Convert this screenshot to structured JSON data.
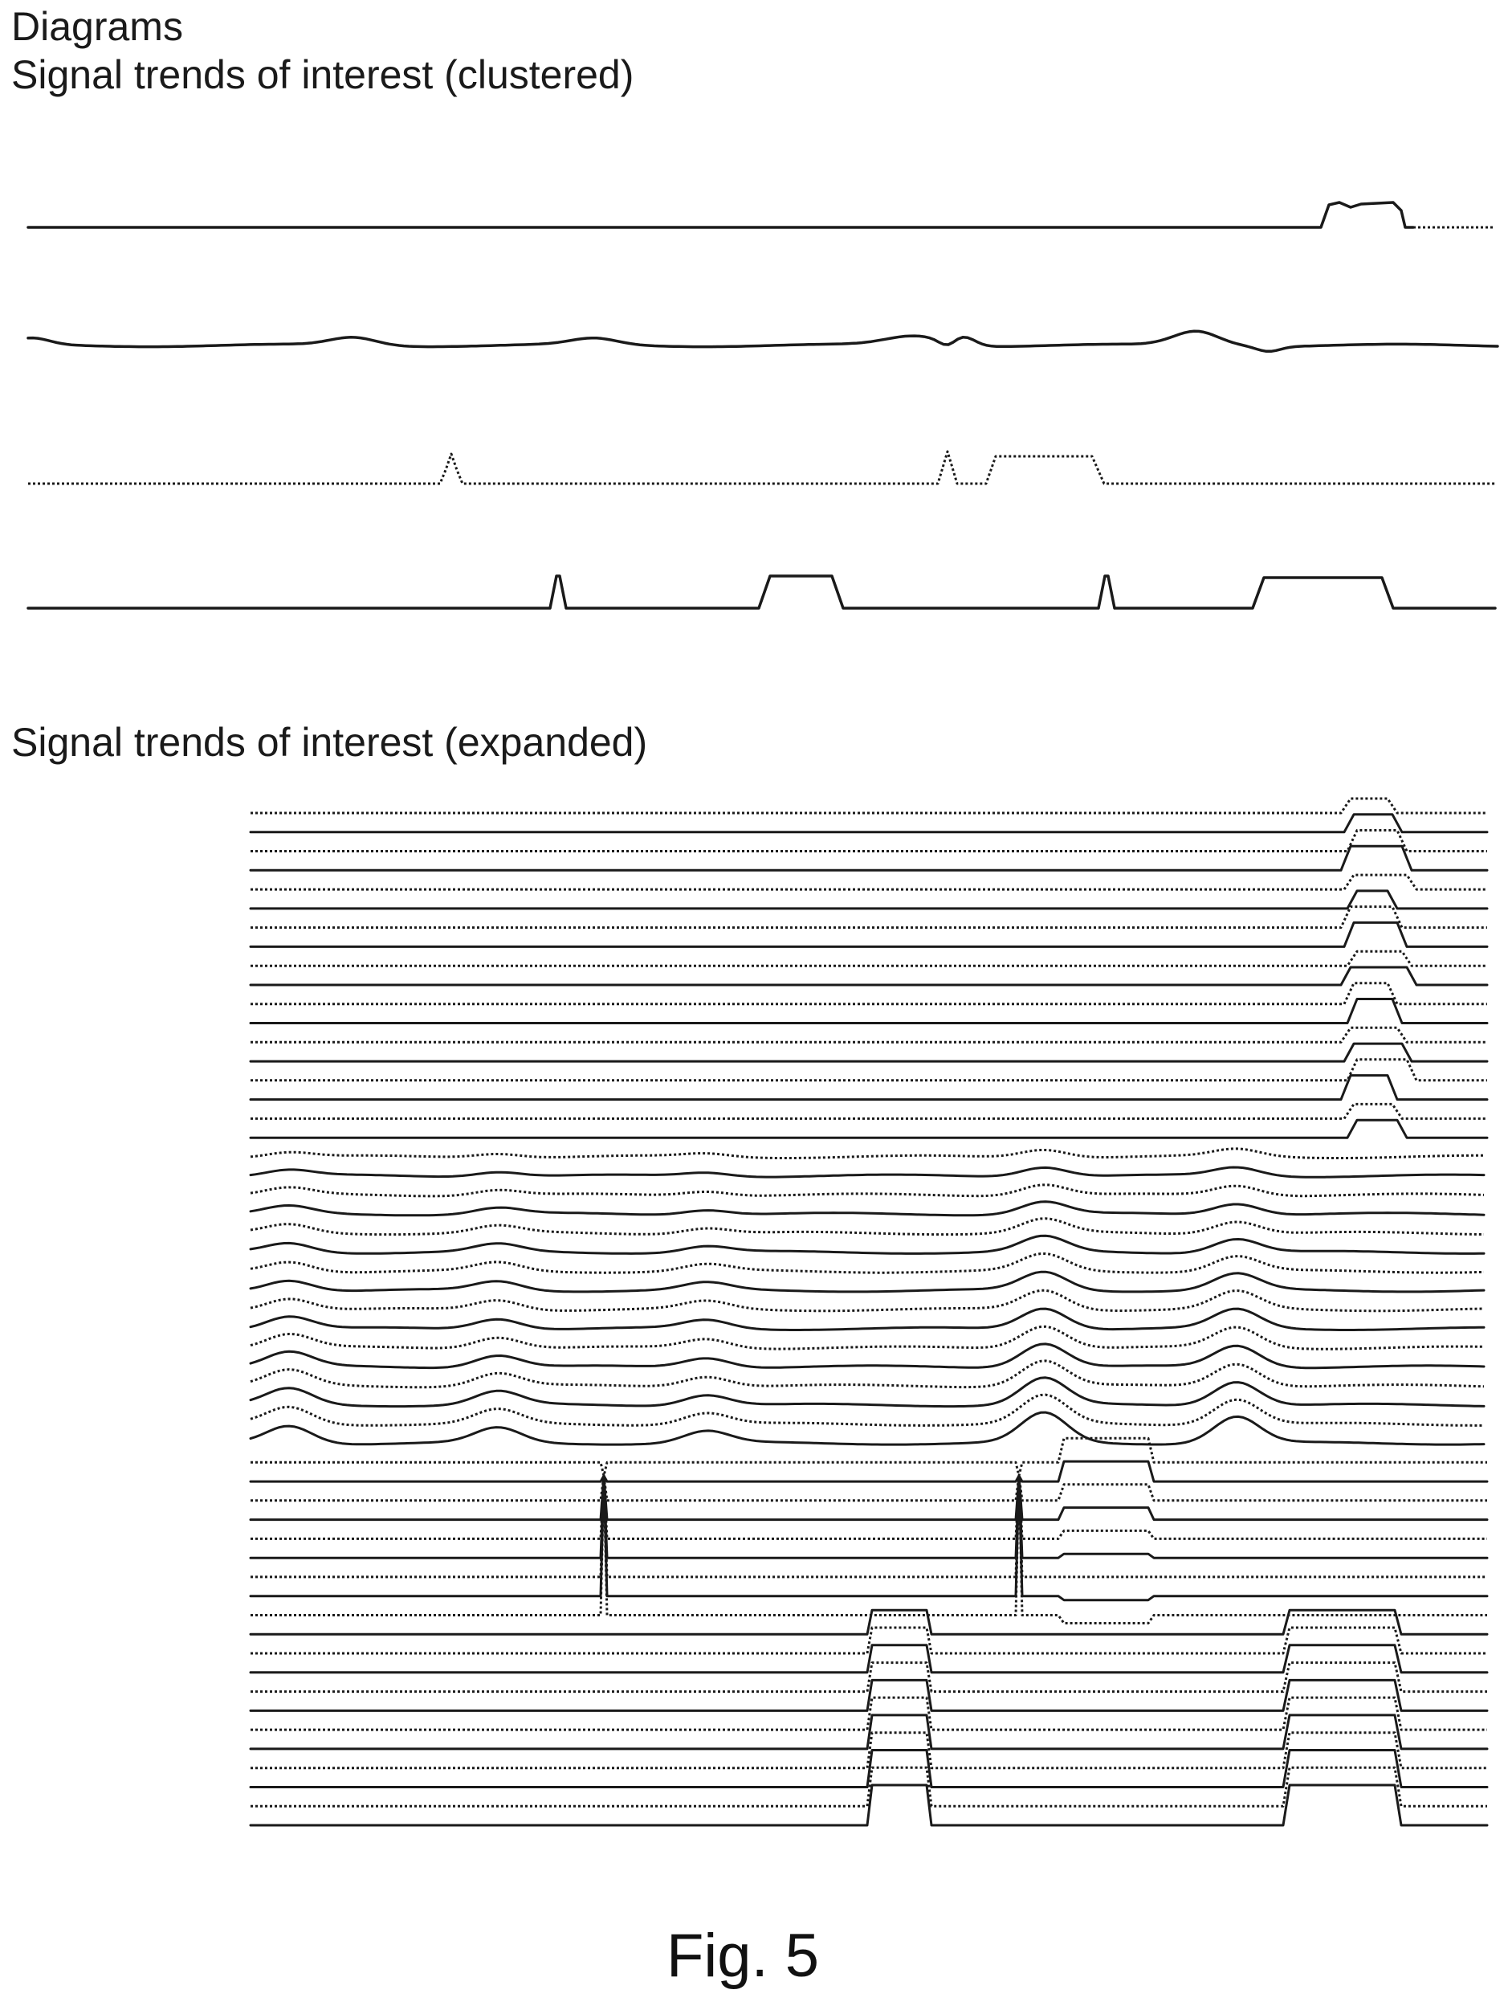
{
  "header": {
    "title": "Diagrams",
    "clustered_title": "Signal trends of interest (clustered)",
    "expanded_title": "Signal trends of interest (expanded)"
  },
  "caption": "Fig. 5",
  "colors": {
    "line": "#1a1a1a",
    "background": "#ffffff"
  },
  "clustered": {
    "series_count": 4,
    "styles": [
      "solid-step",
      "solid-wavy",
      "dotted-step",
      "solid-step"
    ]
  },
  "expanded": {
    "series_count": 54,
    "groups": [
      {
        "kind": "step-late",
        "count": 18
      },
      {
        "kind": "wavy",
        "count": 16
      },
      {
        "kind": "spike-and-dip",
        "count": 9
      },
      {
        "kind": "two-pulse",
        "count": 11
      }
    ]
  }
}
